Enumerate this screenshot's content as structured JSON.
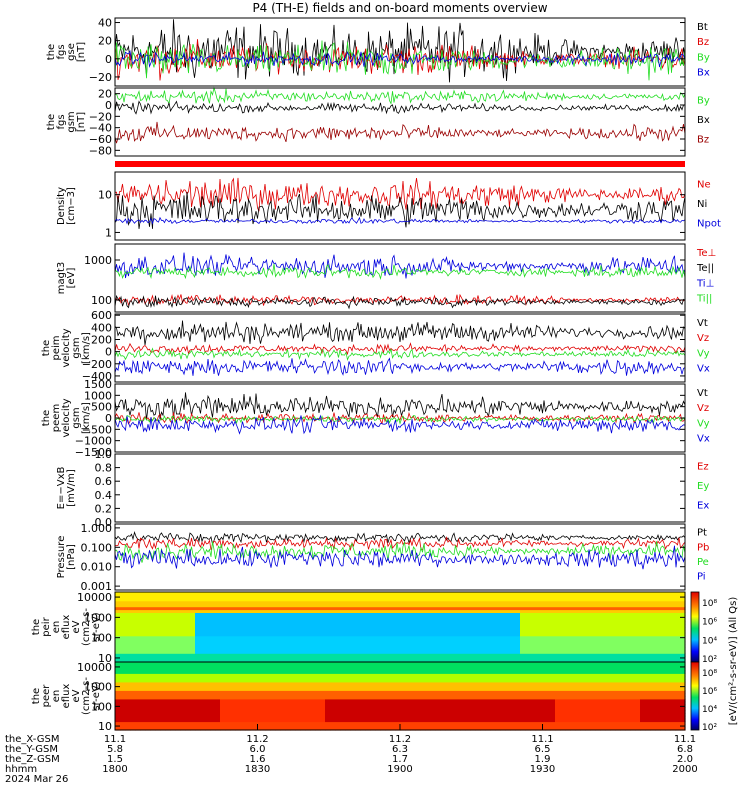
{
  "title": "P4 (TH-E) fields and on-board moments overview",
  "colors": {
    "black": "#000000",
    "red": "#e00000",
    "green": "#22dd22",
    "blue": "#0000dd",
    "darkred": "#990000"
  },
  "panels": [
    {
      "id": "fgs-gse",
      "ylabel": [
        "the",
        "fgs",
        "gse",
        "[nT]"
      ],
      "ticks": [
        "40",
        "20",
        "0",
        "−20"
      ],
      "tickval": [
        40,
        20,
        0,
        -20
      ],
      "ymin": -30,
      "ymax": 45,
      "series": [
        {
          "name": "Bt",
          "color": "black"
        },
        {
          "name": "Bz",
          "color": "red"
        },
        {
          "name": "By",
          "color": "green"
        },
        {
          "name": "Bx",
          "color": "blue"
        }
      ]
    },
    {
      "id": "fgs-gsm",
      "ylabel": [
        "the",
        "fgs",
        "gsm",
        "[nT]"
      ],
      "ticks": [
        "20",
        "0",
        "−20",
        "−40",
        "−60",
        "−80"
      ],
      "tickval": [
        20,
        0,
        -20,
        -40,
        -60,
        -80
      ],
      "ymin": -90,
      "ymax": 30,
      "series": [
        {
          "name": "By",
          "color": "green"
        },
        {
          "name": "Bx",
          "color": "black"
        },
        {
          "name": "Bz",
          "color": "darkred"
        }
      ]
    },
    {
      "id": "density",
      "ylabel": [
        "Density",
        "[cm−3]"
      ],
      "ticks": [
        "10",
        "1"
      ],
      "tickval": [
        1,
        0
      ],
      "ymin": -0.2,
      "ymax": 1.6,
      "series": [
        {
          "name": "Ne",
          "color": "red"
        },
        {
          "name": "Ni",
          "color": "black"
        },
        {
          "name": "Npot",
          "color": "blue"
        }
      ]
    },
    {
      "id": "temperature",
      "ylabel": [
        "magt3",
        "[eV]"
      ],
      "ticks": [
        "1000",
        "100"
      ],
      "tickval": [
        3,
        2
      ],
      "ymin": 1.7,
      "ymax": 3.4,
      "series": [
        {
          "name": "Te⊥",
          "color": "red"
        },
        {
          "name": "Te||",
          "color": "black"
        },
        {
          "name": "Ti⊥",
          "color": "blue"
        },
        {
          "name": "Ti||",
          "color": "green"
        }
      ]
    },
    {
      "id": "peim-velocity",
      "ylabel": [
        "the",
        "peim",
        "velocity",
        "gsm",
        "[km/s]"
      ],
      "ticks": [
        "600",
        "400",
        "200",
        "0",
        "−200",
        "−400"
      ],
      "tickval": [
        600,
        400,
        200,
        0,
        -200,
        -400
      ],
      "ymin": -500,
      "ymax": 620,
      "series": [
        {
          "name": "Vt",
          "color": "black"
        },
        {
          "name": "Vz",
          "color": "red"
        },
        {
          "name": "Vy",
          "color": "green"
        },
        {
          "name": "Vx",
          "color": "blue"
        }
      ]
    },
    {
      "id": "peem-velocity",
      "ylabel": [
        "the",
        "peem",
        "velocity",
        "gsm",
        "[km/s]"
      ],
      "ticks": [
        "1500",
        "1000",
        "500",
        "0",
        "−500",
        "−1000",
        "−1500"
      ],
      "tickval": [
        1500,
        1000,
        500,
        0,
        -500,
        -1000,
        -1500
      ],
      "ymin": -1500,
      "ymax": 1500,
      "series": [
        {
          "name": "Vt",
          "color": "black"
        },
        {
          "name": "Vz",
          "color": "red"
        },
        {
          "name": "Vy",
          "color": "green"
        },
        {
          "name": "Vx",
          "color": "blue"
        }
      ]
    },
    {
      "id": "efield",
      "ylabel": [
        "E=−VxB",
        "[mV/m]"
      ],
      "ticks": [
        "1.0",
        "0.8",
        "0.6",
        "0.4",
        "0.2",
        "0.0"
      ],
      "tickval": [
        1,
        0.8,
        0.6,
        0.4,
        0.2,
        0
      ],
      "ymin": 0,
      "ymax": 1.0,
      "series": [
        {
          "name": "Ez",
          "color": "red"
        },
        {
          "name": "Ey",
          "color": "green"
        },
        {
          "name": "Ex",
          "color": "blue"
        }
      ]
    },
    {
      "id": "pressure",
      "ylabel": [
        "Pressure",
        "[nPa]"
      ],
      "ticks": [
        "1.000",
        "0.100",
        "0.010",
        "0.001"
      ],
      "tickval": [
        0,
        -1,
        -2,
        -3
      ],
      "ymin": -3.2,
      "ymax": 0.2,
      "series": [
        {
          "name": "Pt",
          "color": "black"
        },
        {
          "name": "Pb",
          "color": "red"
        },
        {
          "name": "Pe",
          "color": "green"
        },
        {
          "name": "Pi",
          "color": "blue"
        }
      ]
    },
    {
      "id": "peir-eflux",
      "ylabel": [
        "the",
        "peir",
        "en",
        "eflux",
        "eV",
        "(cm2-s-",
        "sr-eV)"
      ],
      "ticks": [
        "10000",
        "1000",
        "100",
        "10"
      ],
      "tickval": [
        4,
        3,
        2,
        1
      ],
      "ymin": 0.8,
      "ymax": 4.25,
      "spectro": "ion"
    },
    {
      "id": "peer-eflux",
      "ylabel": [
        "the",
        "peer",
        "en",
        "eflux",
        "eV",
        "(cm2-s-",
        "sr-eV)"
      ],
      "ticks": [
        "10000",
        "1000",
        "100",
        "10"
      ],
      "tickval": [
        4,
        3,
        2,
        1
      ],
      "ymin": 0.8,
      "ymax": 4.25,
      "spectro": "electron"
    }
  ],
  "colorbar": {
    "label": "[eV/(cm²-s-sr-eV)] (All Qs)",
    "ticks": [
      "10⁸",
      "10⁶",
      "10⁴",
      "10²"
    ]
  },
  "xaxis": {
    "rows": [
      {
        "label": "the_X-GSM",
        "values": [
          "11.1",
          "11.2",
          "11.2",
          "11.1",
          "11.1"
        ]
      },
      {
        "label": "the_Y-GSM",
        "values": [
          "5.8",
          "6.0",
          "6.3",
          "6.5",
          "6.8"
        ]
      },
      {
        "label": "the_Z-GSM",
        "values": [
          "1.5",
          "1.6",
          "1.7",
          "1.9",
          "2.0"
        ]
      },
      {
        "label": "hhmm",
        "values": [
          "1800",
          "1830",
          "1900",
          "1930",
          "2000"
        ]
      }
    ],
    "date": "2024 Mar 26"
  },
  "chart_data": {
    "type": "line",
    "title": "P4 (TH-E) fields and on-board moments overview",
    "x": [
      "1800",
      "1830",
      "1900",
      "1930",
      "2000"
    ],
    "panels": [
      {
        "ylabel": "the fgs gse [nT]",
        "ylim": [
          -30,
          45
        ],
        "series": [
          "Bt",
          "Bz",
          "By",
          "Bx"
        ],
        "levels": {
          "Bt": 8,
          "Bz": 0,
          "By": 0,
          "Bx": 0
        }
      },
      {
        "ylabel": "the fgs gsm [nT]",
        "ylim": [
          -90,
          30
        ],
        "series": [
          "By",
          "Bx",
          "Bz"
        ],
        "levels": {
          "By": 15,
          "Bx": -5,
          "Bz": -50
        }
      },
      {
        "ylabel": "Density [cm-3]",
        "scale": "log",
        "series": [
          "Ne",
          "Ni",
          "Npot"
        ],
        "levels": {
          "Ne": 10,
          "Ni": 5,
          "Npot": 2
        }
      },
      {
        "ylabel": "magt3 [eV]",
        "scale": "log",
        "series": [
          "Te⊥",
          "Te||",
          "Ti⊥",
          "Ti||"
        ],
        "levels": {
          "Ti⊥": 700,
          "Ti||": 500,
          "Te⊥": 100,
          "Te||": 90
        }
      },
      {
        "ylabel": "the peim velocity gsm [km/s]",
        "ylim": [
          -500,
          620
        ],
        "series": [
          "Vt",
          "Vz",
          "Vy",
          "Vx"
        ],
        "levels": {
          "Vt": 300,
          "Vz": 50,
          "Vy": -50,
          "Vx": -250
        }
      },
      {
        "ylabel": "the peem velocity gsm [km/s]",
        "ylim": [
          -1500,
          1500
        ],
        "series": [
          "Vt",
          "Vz",
          "Vy",
          "Vx"
        ],
        "levels": {
          "Vt": 500,
          "Vz": 0,
          "Vy": -50,
          "Vx": -300
        }
      },
      {
        "ylabel": "E=-VxB [mV/m]",
        "ylim": [
          0,
          1
        ],
        "series": [
          "Ez",
          "Ey",
          "Ex"
        ]
      },
      {
        "ylabel": "Pressure [nPa]",
        "scale": "log",
        "series": [
          "Pt",
          "Pb",
          "Pe",
          "Pi"
        ],
        "levels": {
          "Pt": 0.3,
          "Pb": 0.2,
          "Pe": 0.05,
          "Pi": 0.02
        }
      },
      {
        "ylabel": "the peir en eflux eV/(cm2-s-sr-eV)",
        "type": "heatmap",
        "scale": "log",
        "ylim": [
          10,
          10000
        ]
      },
      {
        "ylabel": "the peer en eflux eV/(cm2-s-sr-eV)",
        "type": "heatmap",
        "scale": "log",
        "ylim": [
          10,
          10000
        ]
      }
    ]
  }
}
